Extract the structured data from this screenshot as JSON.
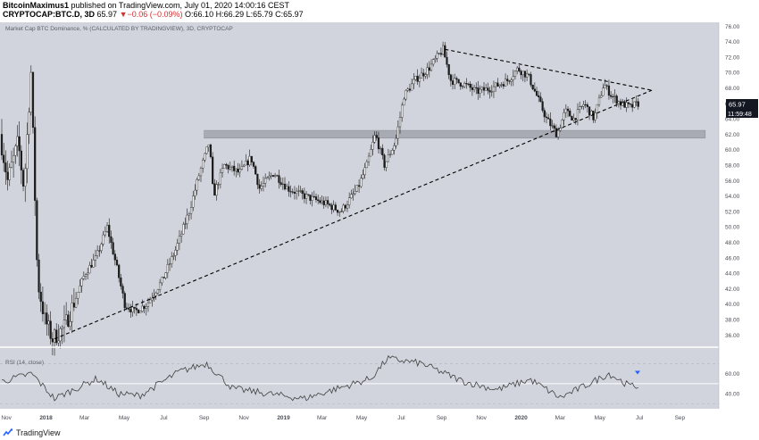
{
  "header": {
    "author": "BitcoinMaximus1",
    "published": "published on TradingView.com, July 01, 2020 14:00:16 CEST",
    "symbol": "CRYPTOCAP:BTC.D, 3D",
    "last": "65.97",
    "change": "▼−0.06 (−0.09%)",
    "ohlc": "O:66.10 H:66.29 L:65.79 C:65.97"
  },
  "chart_title": "Market Cap BTC Dominance, % (CALCULATED BY TRADINGVIEW), 3D, CRYPTOCAP",
  "price_tag": "65.97",
  "countdown": "11:59:48",
  "rsi_label": "RSI (14, close)",
  "footer": {
    "brand": "TradingView"
  },
  "colors": {
    "background": "#d1d4dc",
    "candles": "#1a1a1a",
    "price_tag": "#131722",
    "rsi_line": "#404040",
    "support_zone": "#a8abb3"
  },
  "chart_data": {
    "type": "candlestick",
    "y_axis_ticks": [
      "76.00",
      "74.00",
      "72.00",
      "70.00",
      "68.00",
      "66.00",
      "64.00",
      "62.00",
      "60.00",
      "58.00",
      "56.00",
      "54.00",
      "52.00",
      "50.00",
      "48.00",
      "46.00",
      "44.00",
      "42.00",
      "40.00",
      "38.00",
      "36.00"
    ],
    "ylim": [
      35,
      76.5
    ],
    "x_axis_ticks": [
      "Nov",
      "2018",
      "Mar",
      "May",
      "Jul",
      "Sep",
      "Nov",
      "2019",
      "Mar",
      "May",
      "Jul",
      "Sep",
      "Nov",
      "2020",
      "Mar",
      "May",
      "Jul",
      "Sep"
    ],
    "price_path": [
      {
        "date": "2017-10-25",
        "value": 62
      },
      {
        "date": "2017-11-06",
        "value": 56
      },
      {
        "date": "2017-11-22",
        "value": 61
      },
      {
        "date": "2017-12-01",
        "value": 55
      },
      {
        "date": "2017-12-12",
        "value": 70
      },
      {
        "date": "2017-12-22",
        "value": 43
      },
      {
        "date": "2018-01-02",
        "value": 38
      },
      {
        "date": "2018-01-14",
        "value": 35.5
      },
      {
        "date": "2018-02-01",
        "value": 37
      },
      {
        "date": "2018-02-15",
        "value": 40
      },
      {
        "date": "2018-03-05",
        "value": 44
      },
      {
        "date": "2018-03-22",
        "value": 46
      },
      {
        "date": "2018-04-08",
        "value": 50
      },
      {
        "date": "2018-04-22",
        "value": 45
      },
      {
        "date": "2018-05-05",
        "value": 40
      },
      {
        "date": "2018-05-20",
        "value": 39
      },
      {
        "date": "2018-06-08",
        "value": 40
      },
      {
        "date": "2018-07-01",
        "value": 43
      },
      {
        "date": "2018-07-22",
        "value": 47
      },
      {
        "date": "2018-08-12",
        "value": 52
      },
      {
        "date": "2018-08-28",
        "value": 57
      },
      {
        "date": "2018-09-12",
        "value": 61
      },
      {
        "date": "2018-09-18",
        "value": 54
      },
      {
        "date": "2018-10-05",
        "value": 58
      },
      {
        "date": "2018-10-28",
        "value": 57
      },
      {
        "date": "2018-11-15",
        "value": 59
      },
      {
        "date": "2018-11-28",
        "value": 55
      },
      {
        "date": "2018-12-20",
        "value": 57
      },
      {
        "date": "2019-01-10",
        "value": 55
      },
      {
        "date": "2019-02-05",
        "value": 54
      },
      {
        "date": "2019-03-10",
        "value": 53
      },
      {
        "date": "2019-04-02",
        "value": 52
      },
      {
        "date": "2019-04-28",
        "value": 55
      },
      {
        "date": "2019-05-12",
        "value": 58
      },
      {
        "date": "2019-05-25",
        "value": 62
      },
      {
        "date": "2019-06-08",
        "value": 58
      },
      {
        "date": "2019-06-25",
        "value": 61
      },
      {
        "date": "2019-07-08",
        "value": 67
      },
      {
        "date": "2019-07-25",
        "value": 69
      },
      {
        "date": "2019-08-15",
        "value": 70.5
      },
      {
        "date": "2019-09-06",
        "value": 73
      },
      {
        "date": "2019-09-18",
        "value": 69
      },
      {
        "date": "2019-10-08",
        "value": 68.5
      },
      {
        "date": "2019-10-28",
        "value": 67.5
      },
      {
        "date": "2019-11-20",
        "value": 68
      },
      {
        "date": "2019-12-15",
        "value": 69
      },
      {
        "date": "2019-12-30",
        "value": 70.5
      },
      {
        "date": "2020-01-15",
        "value": 69.5
      },
      {
        "date": "2020-01-28",
        "value": 67
      },
      {
        "date": "2020-02-12",
        "value": 64
      },
      {
        "date": "2020-02-28",
        "value": 62
      },
      {
        "date": "2020-03-12",
        "value": 65
      },
      {
        "date": "2020-03-25",
        "value": 64
      },
      {
        "date": "2020-04-10",
        "value": 66
      },
      {
        "date": "2020-04-25",
        "value": 64
      },
      {
        "date": "2020-05-10",
        "value": 68.5
      },
      {
        "date": "2020-05-22",
        "value": 67
      },
      {
        "date": "2020-06-05",
        "value": 66
      },
      {
        "date": "2020-06-20",
        "value": 65.5
      },
      {
        "date": "2020-07-01",
        "value": 65.97
      }
    ],
    "trendlines": [
      {
        "name": "ascending support",
        "from": {
          "date": "2018-01-14",
          "value": 35.5
        },
        "to": {
          "date": "2020-07-20",
          "value": 67.7
        },
        "style": "dashed"
      },
      {
        "name": "descending resistance",
        "from": {
          "date": "2019-09-06",
          "value": 73
        },
        "to": {
          "date": "2020-07-20",
          "value": 67.7
        },
        "style": "dashed"
      }
    ],
    "support_zone": {
      "from_date": "2018-09-01",
      "to_date": "2020-10-10",
      "low": 61.5,
      "high": 62.5
    },
    "rsi": {
      "label": "RSI (14, close)",
      "y_ticks": [
        "60.00",
        "40.00"
      ],
      "levels": [
        70,
        50,
        30
      ],
      "values_sparse": [
        {
          "date": "2017-10-25",
          "value": 52
        },
        {
          "date": "2017-12-10",
          "value": 60
        },
        {
          "date": "2018-01-14",
          "value": 35
        },
        {
          "date": "2018-03-20",
          "value": 55
        },
        {
          "date": "2018-04-22",
          "value": 40
        },
        {
          "date": "2018-05-25",
          "value": 38
        },
        {
          "date": "2018-07-25",
          "value": 62
        },
        {
          "date": "2018-09-05",
          "value": 70
        },
        {
          "date": "2018-10-15",
          "value": 45
        },
        {
          "date": "2019-02-01",
          "value": 35
        },
        {
          "date": "2019-05-15",
          "value": 55
        },
        {
          "date": "2019-06-10",
          "value": 75
        },
        {
          "date": "2019-08-01",
          "value": 70
        },
        {
          "date": "2019-10-05",
          "value": 52
        },
        {
          "date": "2019-11-25",
          "value": 44
        },
        {
          "date": "2020-01-15",
          "value": 54
        },
        {
          "date": "2020-03-01",
          "value": 36
        },
        {
          "date": "2020-04-15",
          "value": 50
        },
        {
          "date": "2020-05-15",
          "value": 60
        },
        {
          "date": "2020-06-15",
          "value": 48
        },
        {
          "date": "2020-07-01",
          "value": 47
        }
      ]
    }
  }
}
